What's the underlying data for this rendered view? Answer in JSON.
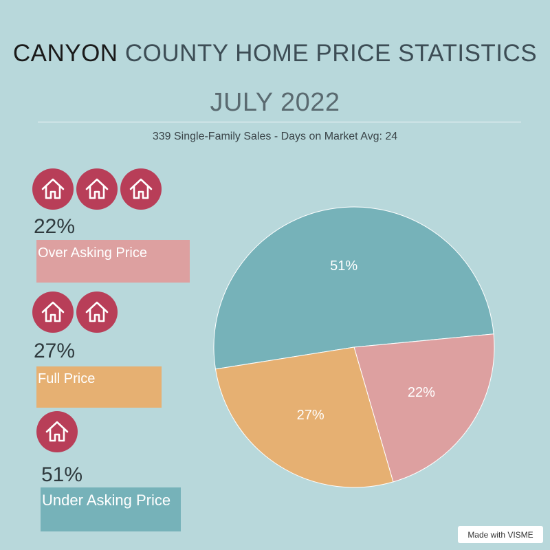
{
  "header": {
    "title_strong": "CANYON",
    "title_rest": " COUNTY HOME PRICE STATISTICS",
    "subtitle": "JULY 2022",
    "summary": "339 Single-Family Sales - Days on Market Avg: 24"
  },
  "legend": {
    "items": [
      {
        "icon": "house-icon",
        "icon_count": 3,
        "percent_label": "22%",
        "label": "Over Asking Price",
        "color": "#dda0a0"
      },
      {
        "icon": "house-icon",
        "icon_count": 2,
        "percent_label": "27%",
        "label": "Full Price",
        "color": "#e6b072"
      },
      {
        "icon": "house-icon",
        "icon_count": 1,
        "percent_label": "51%",
        "label": "Under Asking Price",
        "color": "#76b2b9"
      }
    ]
  },
  "chart_data": {
    "type": "pie",
    "title": "",
    "slices": [
      {
        "name": "Under Asking Price",
        "value": 51,
        "label": "51%",
        "color": "#76b2b9"
      },
      {
        "name": "Over Asking Price",
        "value": 22,
        "label": "22%",
        "color": "#dda0a0"
      },
      {
        "name": "Full Price",
        "value": 27,
        "label": "27%",
        "color": "#e6b072"
      }
    ]
  },
  "footer": {
    "badge": "Made with VISME"
  }
}
